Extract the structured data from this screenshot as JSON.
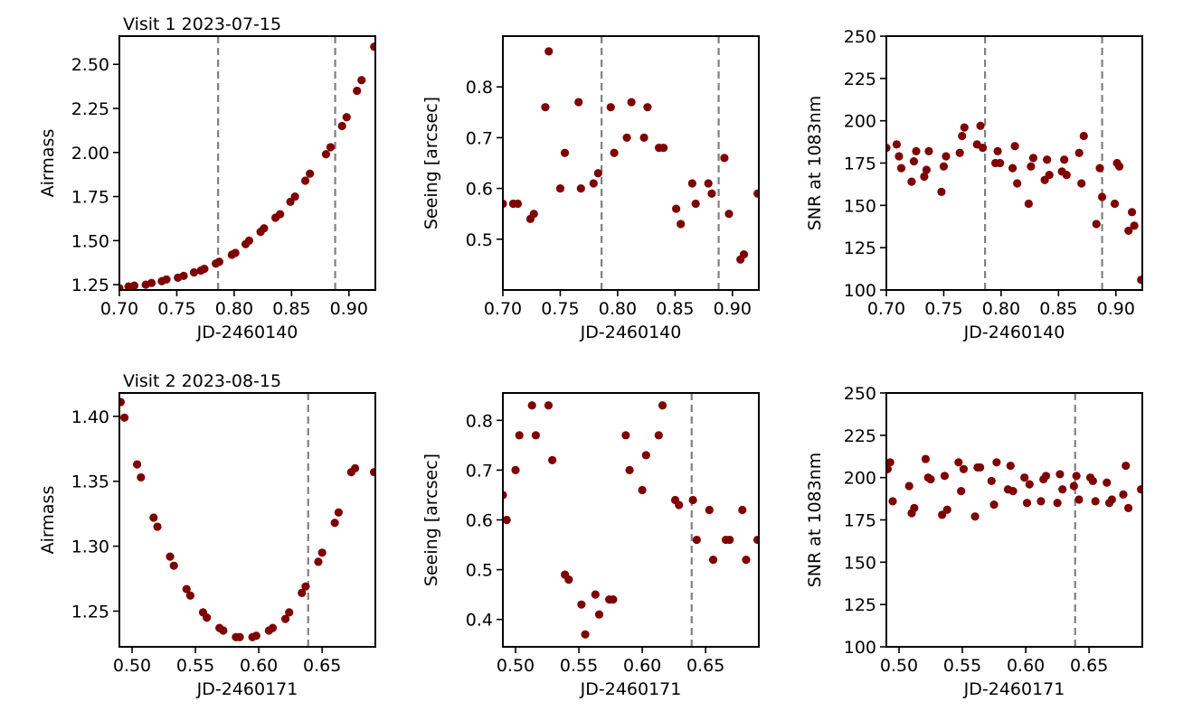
{
  "colors": {
    "points": "#7f0000",
    "vlines": "#808080",
    "axes": "#000000"
  },
  "chart_data": [
    {
      "type": "scatter",
      "row": 0,
      "col": 0,
      "title": "Visit 1 2023-07-15",
      "xlabel": "JD-2460140",
      "ylabel": "Airmass",
      "xlim": [
        0.7,
        0.923
      ],
      "ylim": [
        1.22,
        2.66
      ],
      "xticks": [
        0.7,
        0.75,
        0.8,
        0.85,
        0.9
      ],
      "xticklabels": [
        "0.70",
        "0.75",
        "0.80",
        "0.85",
        "0.90"
      ],
      "yticks": [
        1.25,
        1.5,
        1.75,
        2.0,
        2.25,
        2.5
      ],
      "yticklabels": [
        "1.25",
        "1.50",
        "1.75",
        "2.00",
        "2.25",
        "2.50"
      ],
      "vlines": [
        0.786,
        0.888
      ],
      "x": [
        0.7,
        0.708,
        0.713,
        0.723,
        0.728,
        0.737,
        0.741,
        0.751,
        0.756,
        0.765,
        0.771,
        0.774,
        0.784,
        0.787,
        0.798,
        0.801,
        0.81,
        0.813,
        0.823,
        0.826,
        0.836,
        0.84,
        0.849,
        0.853,
        0.862,
        0.866,
        0.88,
        0.884,
        0.894,
        0.898,
        0.907,
        0.911,
        0.922
      ],
      "y": [
        1.23,
        1.24,
        1.245,
        1.25,
        1.26,
        1.27,
        1.28,
        1.29,
        1.3,
        1.32,
        1.33,
        1.34,
        1.37,
        1.38,
        1.42,
        1.43,
        1.48,
        1.5,
        1.55,
        1.57,
        1.63,
        1.65,
        1.72,
        1.75,
        1.84,
        1.88,
        1.99,
        2.03,
        2.15,
        2.2,
        2.35,
        2.41,
        2.6
      ]
    },
    {
      "type": "scatter",
      "row": 0,
      "col": 1,
      "title": "",
      "xlabel": "JD-2460140",
      "ylabel": "Seeing [arcsec]",
      "xlim": [
        0.7,
        0.923
      ],
      "ylim": [
        0.4,
        0.9
      ],
      "xticks": [
        0.7,
        0.75,
        0.8,
        0.85,
        0.9
      ],
      "xticklabels": [
        "0.70",
        "0.75",
        "0.80",
        "0.85",
        "0.90"
      ],
      "yticks": [
        0.5,
        0.6,
        0.7,
        0.8
      ],
      "yticklabels": [
        "0.5",
        "0.6",
        "0.7",
        "0.8"
      ],
      "vlines": [
        0.786,
        0.888
      ],
      "x": [
        0.7,
        0.709,
        0.713,
        0.724,
        0.727,
        0.737,
        0.74,
        0.75,
        0.754,
        0.766,
        0.768,
        0.779,
        0.783,
        0.794,
        0.797,
        0.808,
        0.812,
        0.823,
        0.826,
        0.836,
        0.84,
        0.851,
        0.855,
        0.865,
        0.868,
        0.879,
        0.882,
        0.893,
        0.897,
        0.907,
        0.91,
        0.922
      ],
      "y": [
        0.57,
        0.57,
        0.57,
        0.54,
        0.55,
        0.76,
        0.87,
        0.6,
        0.67,
        0.77,
        0.6,
        0.61,
        0.63,
        0.76,
        0.67,
        0.7,
        0.77,
        0.7,
        0.76,
        0.68,
        0.68,
        0.56,
        0.53,
        0.61,
        0.57,
        0.61,
        0.59,
        0.66,
        0.55,
        0.46,
        0.47,
        0.59
      ]
    },
    {
      "type": "scatter",
      "row": 0,
      "col": 2,
      "title": "",
      "xlabel": "JD-2460140",
      "ylabel": "SNR at 1083nm",
      "xlim": [
        0.7,
        0.923
      ],
      "ylim": [
        100,
        250
      ],
      "xticks": [
        0.7,
        0.75,
        0.8,
        0.85,
        0.9
      ],
      "xticklabels": [
        "0.70",
        "0.75",
        "0.80",
        "0.85",
        "0.90"
      ],
      "yticks": [
        100,
        125,
        150,
        175,
        200,
        225,
        250
      ],
      "yticklabels": [
        "100",
        "125",
        "150",
        "175",
        "200",
        "225",
        "250"
      ],
      "vlines": [
        0.786,
        0.888
      ],
      "x": [
        0.7,
        0.709,
        0.711,
        0.713,
        0.722,
        0.724,
        0.726,
        0.733,
        0.735,
        0.737,
        0.748,
        0.75,
        0.752,
        0.764,
        0.766,
        0.768,
        0.779,
        0.782,
        0.784,
        0.795,
        0.797,
        0.799,
        0.81,
        0.812,
        0.814,
        0.824,
        0.826,
        0.828,
        0.838,
        0.84,
        0.842,
        0.853,
        0.855,
        0.857,
        0.868,
        0.87,
        0.872,
        0.883,
        0.886,
        0.888,
        0.899,
        0.901,
        0.903,
        0.911,
        0.914,
        0.916,
        0.922
      ],
      "y": [
        184,
        186,
        179,
        172,
        164,
        176,
        182,
        167,
        171,
        182,
        158,
        173,
        179,
        181,
        191,
        196,
        186,
        197,
        184,
        175,
        182,
        175,
        172,
        185,
        163,
        151,
        173,
        178,
        165,
        177,
        168,
        170,
        177,
        168,
        181,
        163,
        191,
        139,
        172,
        155,
        151,
        175,
        173,
        135,
        146,
        138,
        106
      ]
    },
    {
      "type": "scatter",
      "row": 1,
      "col": 0,
      "title": "Visit 2 2023-08-15",
      "xlabel": "JD-2460171",
      "ylabel": "Airmass",
      "xlim": [
        0.49,
        0.692
      ],
      "ylim": [
        1.2225,
        1.418
      ],
      "xticks": [
        0.5,
        0.55,
        0.6,
        0.65
      ],
      "xticklabels": [
        "0.50",
        "0.55",
        "0.60",
        "0.65"
      ],
      "yticks": [
        1.25,
        1.3,
        1.35,
        1.4
      ],
      "yticklabels": [
        "1.25",
        "1.30",
        "1.35",
        "1.40"
      ],
      "vlines": [
        0.639
      ],
      "x": [
        0.491,
        0.494,
        0.504,
        0.507,
        0.517,
        0.52,
        0.53,
        0.533,
        0.543,
        0.546,
        0.556,
        0.559,
        0.569,
        0.572,
        0.582,
        0.585,
        0.595,
        0.598,
        0.608,
        0.611,
        0.621,
        0.624,
        0.634,
        0.637,
        0.647,
        0.65,
        0.66,
        0.663,
        0.673,
        0.676,
        0.691
      ],
      "y": [
        1.411,
        1.399,
        1.363,
        1.353,
        1.322,
        1.315,
        1.292,
        1.285,
        1.267,
        1.262,
        1.249,
        1.245,
        1.237,
        1.235,
        1.23,
        1.23,
        1.23,
        1.231,
        1.235,
        1.237,
        1.244,
        1.249,
        1.264,
        1.269,
        1.288,
        1.295,
        1.318,
        1.326,
        1.357,
        1.36,
        1.357
      ]
    },
    {
      "type": "scatter",
      "row": 1,
      "col": 1,
      "title": "",
      "xlabel": "JD-2460171",
      "ylabel": "Seeing [arcsec]",
      "xlim": [
        0.49,
        0.692
      ],
      "ylim": [
        0.345,
        0.855
      ],
      "xticks": [
        0.5,
        0.55,
        0.6,
        0.65
      ],
      "xticklabels": [
        "0.50",
        "0.55",
        "0.60",
        "0.65"
      ],
      "yticks": [
        0.4,
        0.5,
        0.6,
        0.7,
        0.8
      ],
      "yticklabels": [
        "0.4",
        "0.5",
        "0.6",
        "0.7",
        "0.8"
      ],
      "vlines": [
        0.639
      ],
      "x": [
        0.49,
        0.493,
        0.5,
        0.503,
        0.513,
        0.516,
        0.526,
        0.529,
        0.539,
        0.542,
        0.552,
        0.555,
        0.563,
        0.566,
        0.574,
        0.577,
        0.587,
        0.59,
        0.6,
        0.603,
        0.613,
        0.616,
        0.626,
        0.629,
        0.64,
        0.643,
        0.653,
        0.656,
        0.666,
        0.669,
        0.679,
        0.682,
        0.691
      ],
      "y": [
        0.65,
        0.6,
        0.7,
        0.77,
        0.83,
        0.77,
        0.83,
        0.72,
        0.49,
        0.48,
        0.43,
        0.37,
        0.45,
        0.41,
        0.44,
        0.44,
        0.77,
        0.7,
        0.66,
        0.73,
        0.77,
        0.83,
        0.64,
        0.63,
        0.64,
        0.56,
        0.62,
        0.52,
        0.56,
        0.56,
        0.62,
        0.52,
        0.56
      ]
    },
    {
      "type": "scatter",
      "row": 1,
      "col": 2,
      "title": "",
      "xlabel": "JD-2460171",
      "ylabel": "SNR at 1083nm",
      "xlim": [
        0.49,
        0.692
      ],
      "ylim": [
        100,
        250
      ],
      "xticks": [
        0.5,
        0.55,
        0.6,
        0.65
      ],
      "xticklabels": [
        "0.50",
        "0.55",
        "0.60",
        "0.65"
      ],
      "yticks": [
        100,
        125,
        150,
        175,
        200,
        225,
        250
      ],
      "yticklabels": [
        "100",
        "125",
        "150",
        "175",
        "200",
        "225",
        "250"
      ],
      "vlines": [
        0.639
      ],
      "x": [
        0.491,
        0.493,
        0.495,
        0.508,
        0.51,
        0.512,
        0.521,
        0.523,
        0.525,
        0.534,
        0.536,
        0.538,
        0.547,
        0.549,
        0.551,
        0.56,
        0.562,
        0.564,
        0.573,
        0.575,
        0.577,
        0.586,
        0.588,
        0.59,
        0.599,
        0.601,
        0.603,
        0.612,
        0.614,
        0.616,
        0.625,
        0.627,
        0.629,
        0.638,
        0.64,
        0.642,
        0.651,
        0.653,
        0.655,
        0.664,
        0.666,
        0.668,
        0.677,
        0.679,
        0.681,
        0.691
      ],
      "y": [
        205,
        209,
        186,
        195,
        179,
        182,
        211,
        200,
        199,
        178,
        201,
        181,
        209,
        192,
        205,
        177,
        206,
        206,
        198,
        184,
        209,
        193,
        207,
        192,
        200,
        185,
        196,
        186,
        199,
        201,
        185,
        202,
        193,
        195,
        201,
        187,
        200,
        198,
        186,
        197,
        185,
        187,
        190,
        207,
        182,
        193
      ]
    }
  ]
}
